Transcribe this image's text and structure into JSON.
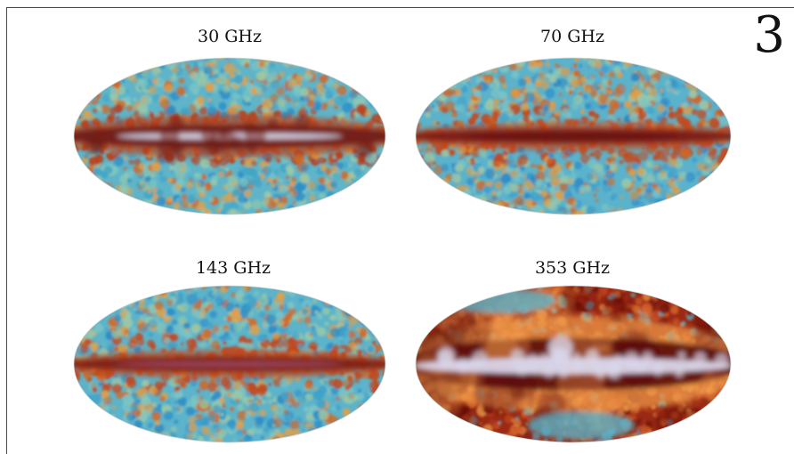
{
  "figure_number": "3",
  "panels": [
    {
      "label": "30 GHz",
      "id": "30ghz",
      "palette": {
        "bg": "#5fb4c9",
        "noise": [
          "#3fa6c8",
          "#7cc6c4",
          "#e0a04a",
          "#cf6a2a",
          "#9ac9a8",
          "#2d8fc6"
        ],
        "band": "#6e1a12",
        "band_core": "#d8d4e8",
        "accent": "#b7431f"
      }
    },
    {
      "label": "70 GHz",
      "id": "70ghz",
      "palette": {
        "bg": "#5bb2cb",
        "noise": [
          "#3fa1cc",
          "#79c3c6",
          "#df9d47",
          "#cd6a2c",
          "#98c8aa",
          "#2c8cc8"
        ],
        "band": "#7a1c14",
        "band_core": "#5a0e0c",
        "accent": "#c24a1f"
      }
    },
    {
      "label": "143 GHz",
      "id": "143ghz",
      "palette": {
        "bg": "#5cb3ca",
        "noise": [
          "#3ea2cb",
          "#7bc4c5",
          "#e2a048",
          "#d06b2b",
          "#99c8a9",
          "#2b8ec7"
        ],
        "band": "#7c1f14",
        "band_core": "#a04a62",
        "accent": "#c3481f"
      }
    },
    {
      "label": "353 GHz",
      "id": "353ghz",
      "palette": {
        "bg": "#9a2a14",
        "noise": [
          "#b5361a",
          "#d2622a",
          "#7a1810",
          "#e0893f",
          "#5bb2c7",
          "#c84a20"
        ],
        "band": "#5a0c0c",
        "band_core": "#d9d6ea",
        "accent": "#f09a4a"
      }
    }
  ]
}
